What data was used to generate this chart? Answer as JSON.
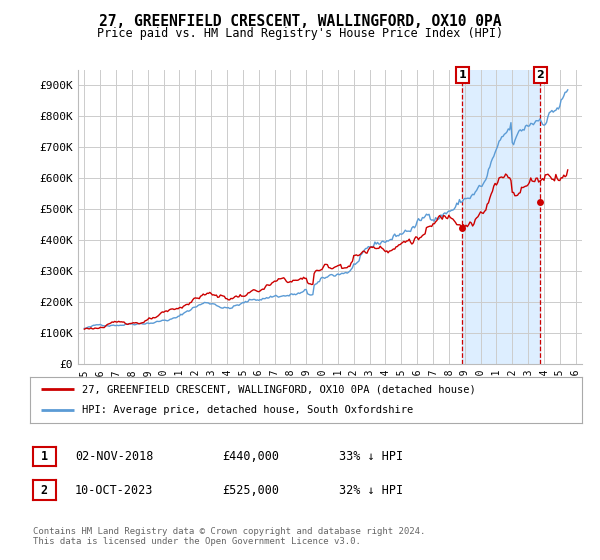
{
  "title": "27, GREENFIELD CRESCENT, WALLINGFORD, OX10 0PA",
  "subtitle": "Price paid vs. HM Land Registry's House Price Index (HPI)",
  "legend_label_red": "27, GREENFIELD CRESCENT, WALLINGFORD, OX10 0PA (detached house)",
  "legend_label_blue": "HPI: Average price, detached house, South Oxfordshire",
  "annotation1_label": "1",
  "annotation1_date": "02-NOV-2018",
  "annotation1_price": "£440,000",
  "annotation1_pct": "33% ↓ HPI",
  "annotation2_label": "2",
  "annotation2_date": "10-OCT-2023",
  "annotation2_price": "£525,000",
  "annotation2_pct": "32% ↓ HPI",
  "footnote": "Contains HM Land Registry data © Crown copyright and database right 2024.\nThis data is licensed under the Open Government Licence v3.0.",
  "red_color": "#cc0000",
  "blue_color": "#5b9bd5",
  "shade_color": "#ddeeff",
  "annotation_color": "#cc0000",
  "background_color": "#ffffff",
  "grid_color": "#cccccc",
  "ylim": [
    0,
    950000
  ],
  "yticks": [
    0,
    100000,
    200000,
    300000,
    400000,
    500000,
    600000,
    700000,
    800000,
    900000
  ],
  "ytick_labels": [
    "£0",
    "£100K",
    "£200K",
    "£300K",
    "£400K",
    "£500K",
    "£600K",
    "£700K",
    "£800K",
    "£900K"
  ],
  "ann1_x": 2018.84,
  "ann1_y": 440000,
  "ann2_x": 2023.78,
  "ann2_y": 525000,
  "xlim_left": 1994.6,
  "xlim_right": 2026.4
}
